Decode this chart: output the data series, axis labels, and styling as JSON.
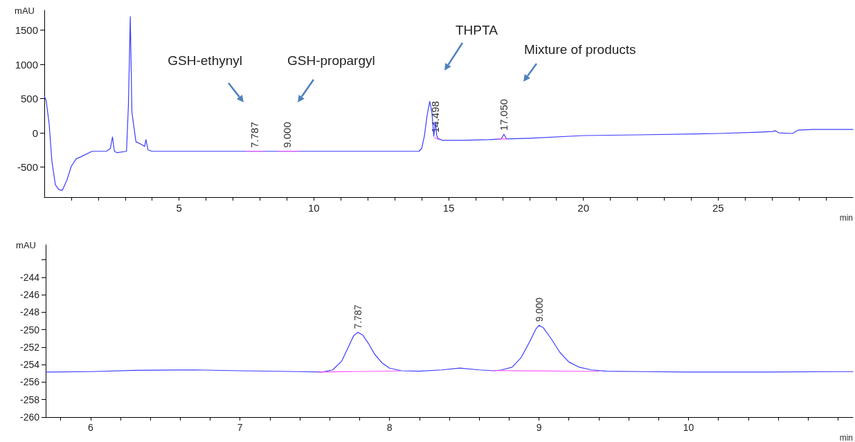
{
  "chart_data": [
    {
      "type": "line",
      "xlabel": "min",
      "ylabel": "mAU",
      "xlim": [
        0,
        30
      ],
      "ylim": [
        -940,
        1790
      ],
      "xticks": [
        {
          "value": 1,
          "label": null
        },
        {
          "value": 2,
          "label": null
        },
        {
          "value": 3,
          "label": null
        },
        {
          "value": 4,
          "label": null
        },
        5,
        {
          "value": 6,
          "label": null
        },
        {
          "value": 7,
          "label": null
        },
        {
          "value": 8,
          "label": null
        },
        {
          "value": 9,
          "label": null
        },
        10,
        {
          "value": 11,
          "label": null
        },
        {
          "value": 12,
          "label": null
        },
        {
          "value": 13,
          "label": null
        },
        {
          "value": 14,
          "label": null
        },
        15,
        {
          "value": 16,
          "label": null
        },
        {
          "value": 17,
          "label": null
        },
        {
          "value": 18,
          "label": null
        },
        {
          "value": 19,
          "label": null
        },
        20,
        {
          "value": 21,
          "label": null
        },
        {
          "value": 22,
          "label": null
        },
        {
          "value": 23,
          "label": null
        },
        {
          "value": 24,
          "label": null
        },
        25,
        {
          "value": 26,
          "label": null
        },
        {
          "value": 27,
          "label": null
        },
        {
          "value": 28,
          "label": null
        },
        {
          "value": 29,
          "label": null
        }
      ],
      "yticks": [
        -500,
        0,
        500,
        1000,
        1500
      ],
      "grid": false,
      "marker": "none",
      "line_style": "solid",
      "series": [
        {
          "color": "#3c3cff",
          "x": [
            0,
            0.07,
            0.18,
            0.28,
            0.41,
            0.54,
            0.67,
            0.84,
            1.0,
            1.18,
            1.36,
            1.77,
            2.3,
            2.45,
            2.53,
            2.6,
            2.7,
            3.05,
            3.12,
            3.19,
            3.25,
            3.4,
            3.65,
            3.72,
            3.77,
            3.85,
            4.0,
            7.0,
            10.0,
            13.9,
            14.0,
            14.1,
            14.2,
            14.3,
            14.38,
            14.45,
            14.51,
            14.56,
            14.6,
            14.77,
            15.5,
            16.5,
            16.95,
            17.05,
            17.15,
            18,
            20,
            22,
            25,
            26.5,
            27.0,
            27.12,
            27.25,
            27.76,
            27.97,
            28.5,
            30
          ],
          "values": [
            540,
            470,
            130,
            -410,
            -760,
            -830,
            -840,
            -690,
            -490,
            -380,
            -350,
            -270,
            -270,
            -230,
            -60,
            -270,
            -290,
            -270,
            400,
            1700,
            300,
            -130,
            -180,
            -200,
            -100,
            -250,
            -270,
            -270,
            -270,
            -270,
            -230,
            -50,
            250,
            460,
            300,
            -50,
            160,
            -40,
            -80,
            -110,
            -110,
            -100,
            -90,
            -20,
            -90,
            -80,
            -40,
            -30,
            -10,
            10,
            20,
            30,
            0,
            -10,
            40,
            50,
            50
          ]
        },
        {
          "color": "#ff55ff",
          "x": [
            7.5,
            8.12,
            8.4,
            8.7,
            9.45,
            12,
            14.48,
            14.65,
            16,
            16.85,
            17.15
          ],
          "values": [
            -270,
            -270,
            null,
            -270,
            -270,
            null,
            -70,
            -100,
            null,
            -90,
            -90
          ]
        }
      ],
      "annotations": [
        {
          "text": "7.787",
          "x": 7.787,
          "y": -270
        },
        {
          "text": "9.000",
          "x": 9.0,
          "y": -270
        },
        {
          "text": "14.498",
          "x": 14.498,
          "y": -50
        },
        {
          "text": "17.050",
          "x": 17.05,
          "y": -20
        },
        "GSH-ethynyl",
        "GSH-propargyl",
        "THPTA",
        "Mixture of products"
      ]
    },
    {
      "type": "line",
      "xlabel": "min",
      "ylabel": "mAU",
      "xlim": [
        5.7,
        11.1
      ],
      "ylim": [
        -260,
        -240.3
      ],
      "xticks": [
        {
          "value": 5.8,
          "label": null
        },
        6,
        {
          "value": 6.2,
          "label": null
        },
        {
          "value": 6.4,
          "label": null
        },
        {
          "value": 6.6,
          "label": null
        },
        {
          "value": 6.8,
          "label": null
        },
        7,
        {
          "value": 7.2,
          "label": null
        },
        {
          "value": 7.4,
          "label": null
        },
        {
          "value": 7.6,
          "label": null
        },
        {
          "value": 7.8,
          "label": null
        },
        8,
        {
          "value": 8.2,
          "label": null
        },
        {
          "value": 8.4,
          "label": null
        },
        {
          "value": 8.6,
          "label": null
        },
        {
          "value": 8.8,
          "label": null
        },
        9,
        {
          "value": 9.2,
          "label": null
        },
        {
          "value": 9.4,
          "label": null
        },
        {
          "value": 9.6,
          "label": null
        },
        {
          "value": 9.8,
          "label": null
        },
        10,
        {
          "value": 10.2,
          "label": null
        },
        {
          "value": 10.4,
          "label": null
        },
        {
          "value": 10.6,
          "label": null
        },
        {
          "value": 10.8,
          "label": null
        },
        {
          "value": 11,
          "label": null
        }
      ],
      "yticks": [
        -260,
        -258,
        -256,
        -254,
        -252,
        -250,
        -248,
        -246,
        -244,
        {
          "value": -242,
          "label": null
        }
      ],
      "grid": false,
      "marker": "none",
      "line_style": "solid",
      "series": [
        {
          "color": "#3c3cff",
          "x": [
            5.7,
            6.0,
            6.3,
            6.7,
            7.0,
            7.4,
            7.55,
            7.62,
            7.68,
            7.73,
            7.76,
            7.787,
            7.82,
            7.86,
            7.9,
            7.95,
            8.0,
            8.08,
            8.2,
            8.35,
            8.47,
            8.6,
            8.7,
            8.75,
            8.82,
            8.88,
            8.94,
            8.98,
            9.0,
            9.03,
            9.08,
            9.14,
            9.2,
            9.27,
            9.35,
            9.45,
            9.7,
            10.0,
            10.5,
            11.0,
            11.1
          ],
          "values": [
            -254.85,
            -254.8,
            -254.65,
            -254.6,
            -254.7,
            -254.8,
            -254.85,
            -254.6,
            -253.6,
            -251.8,
            -250.7,
            -250.3,
            -250.6,
            -251.6,
            -252.8,
            -253.8,
            -254.4,
            -254.7,
            -254.75,
            -254.6,
            -254.4,
            -254.6,
            -254.7,
            -254.6,
            -254.3,
            -253.2,
            -251.3,
            -249.9,
            -249.5,
            -249.8,
            -251.0,
            -252.6,
            -253.7,
            -254.3,
            -254.6,
            -254.75,
            -254.8,
            -254.85,
            -254.85,
            -254.8,
            -254.8
          ]
        },
        {
          "color": "#ff55ff",
          "x": [
            7.53,
            8.07,
            8.4,
            8.68,
            9.4
          ],
          "values": [
            -254.85,
            -254.72,
            null,
            -254.68,
            -254.78
          ]
        }
      ],
      "annotations": [
        {
          "text": "7.787",
          "x": 7.787,
          "y": -250.3
        },
        {
          "text": "9.000",
          "x": 9.0,
          "y": -249.5
        }
      ]
    }
  ]
}
